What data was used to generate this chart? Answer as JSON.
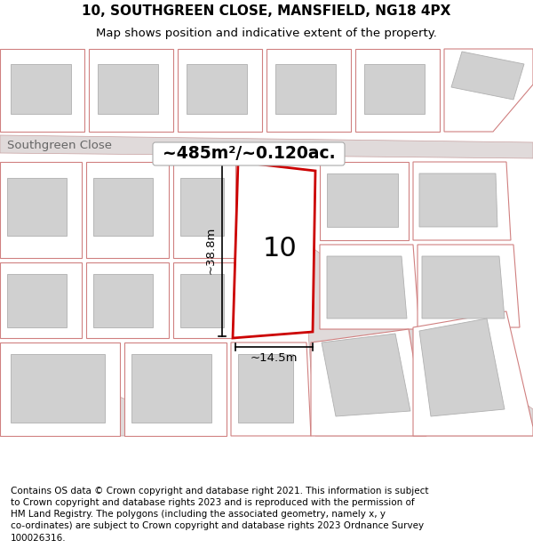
{
  "title": "10, SOUTHGREEN CLOSE, MANSFIELD, NG18 4PX",
  "subtitle": "Map shows position and indicative extent of the property.",
  "footer_text": "Contains OS data © Crown copyright and database right 2021. This information is subject\nto Crown copyright and database rights 2023 and is reproduced with the permission of\nHM Land Registry. The polygons (including the associated geometry, namely x, y\nco-ordinates) are subject to Crown copyright and database rights 2023 Ordnance Survey\n100026316.",
  "area_label": "~485m²/~0.120ac.",
  "street_label": "Southgreen Close",
  "width_label": "~14.5m",
  "height_label": "~38.8m",
  "property_number": "10",
  "bg_color": "#ffffff",
  "plot_line_color": "#cc0000",
  "other_plot_edge": "#d08080",
  "building_fill": "#d0d0d0",
  "building_stroke": "#b0b0b0",
  "road_fill": "#e0dada",
  "road_stroke": "#c8a0a0",
  "title_fontsize": 11,
  "subtitle_fontsize": 9.5,
  "footer_fontsize": 7.5
}
